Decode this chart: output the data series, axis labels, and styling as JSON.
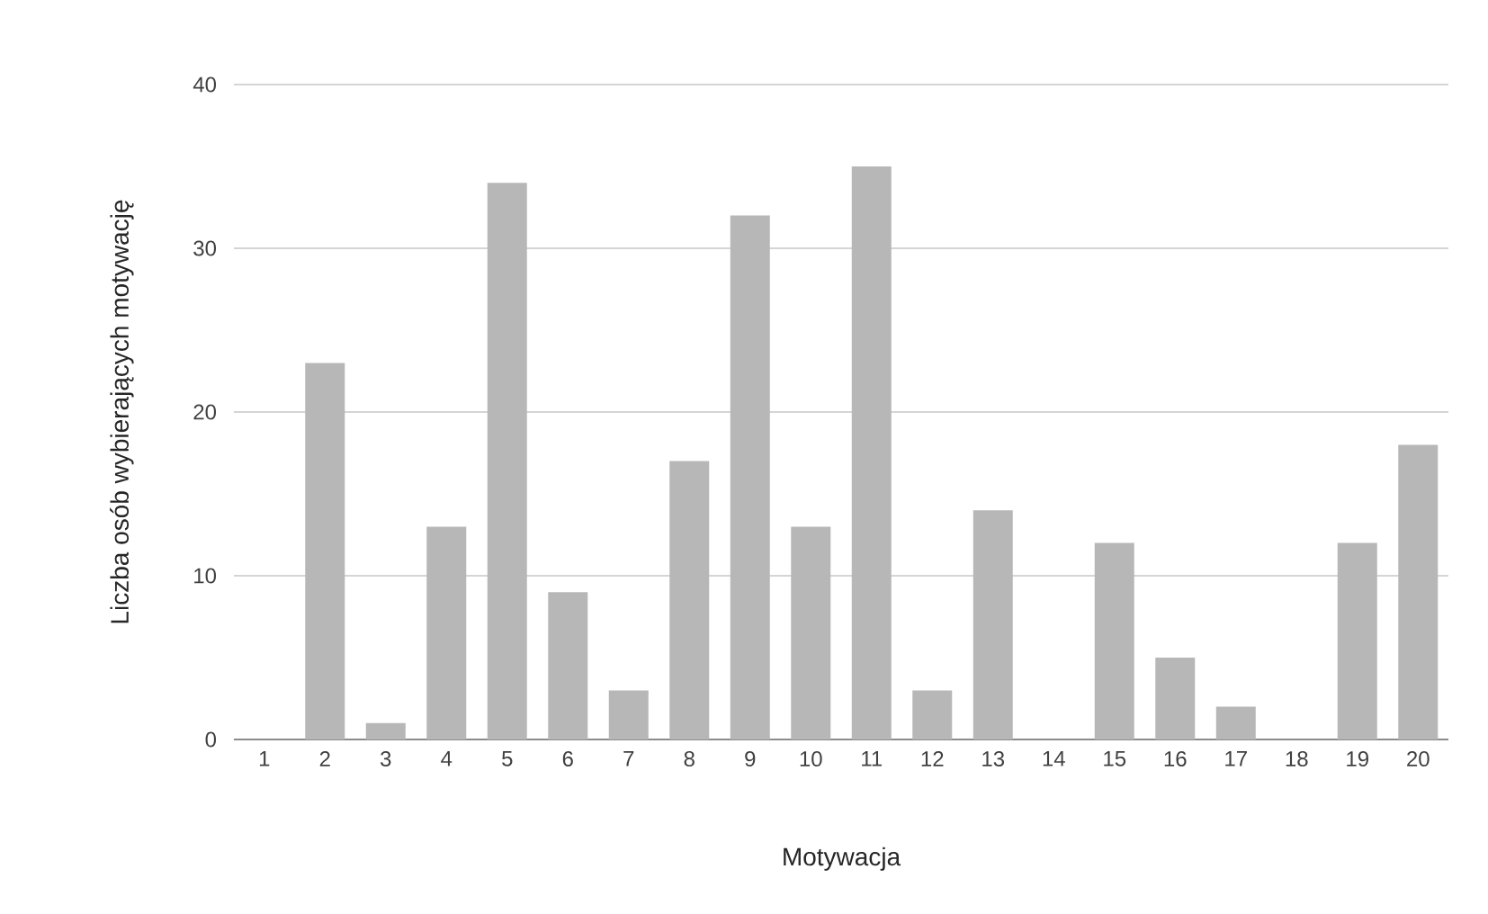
{
  "chart_data": {
    "type": "bar",
    "xlabel": "Motywacja",
    "ylabel": "Liczba osób wybierających motywację",
    "categories": [
      "1",
      "2",
      "3",
      "4",
      "5",
      "6",
      "7",
      "8",
      "9",
      "10",
      "11",
      "12",
      "13",
      "14",
      "15",
      "16",
      "17",
      "18",
      "19",
      "20"
    ],
    "values": [
      0,
      23,
      1,
      13,
      34,
      9,
      3,
      17,
      32,
      13,
      35,
      3,
      14,
      0,
      12,
      5,
      2,
      0,
      12,
      18
    ],
    "color": "#b7b7b7",
    "ylim": [
      0,
      40
    ],
    "yticks": [
      0,
      10,
      20,
      30,
      40
    ],
    "grid": "y"
  }
}
